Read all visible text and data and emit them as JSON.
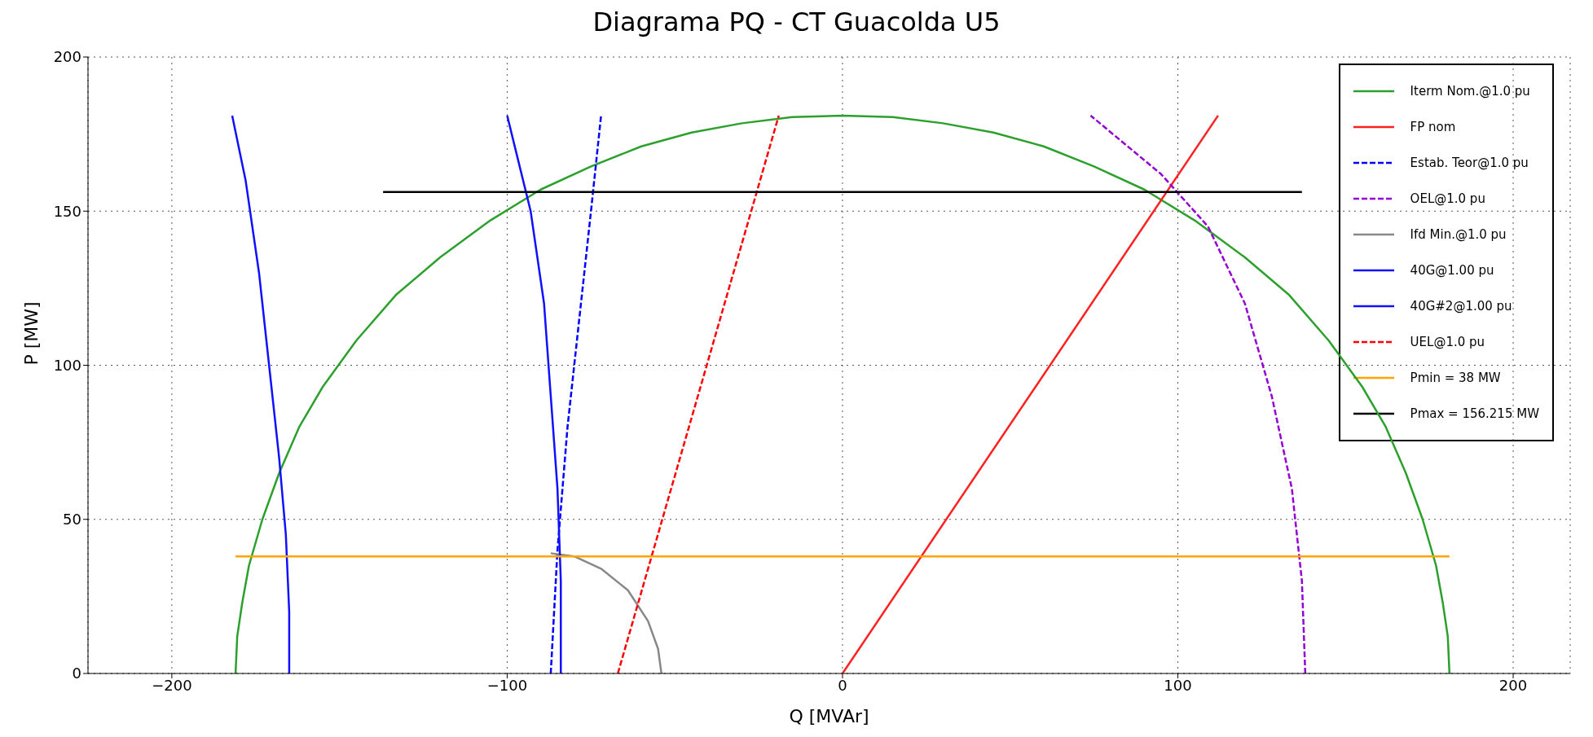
{
  "chart_data": {
    "type": "line",
    "title": "Diagrama PQ - CT Guacolda U5",
    "xlabel": "Q [MVAr]",
    "ylabel": "P [MW]",
    "xlim": [
      -225,
      217
    ],
    "ylim": [
      0,
      200
    ],
    "xticks": [
      -200,
      -100,
      0,
      100,
      200
    ],
    "yticks": [
      0,
      50,
      100,
      150,
      200
    ],
    "grid": true,
    "legend": "top right",
    "marker": "none",
    "series": [
      {
        "name": "Iterm Nom.@1.0 pu",
        "color": "#2ca02c",
        "line_style": "solid",
        "x": [
          -181,
          -180.5,
          -179,
          -177,
          -173,
          -168,
          -162,
          -155,
          -145,
          -133,
          -120,
          -105,
          -90,
          -75,
          -60,
          -45,
          -30,
          -15,
          0,
          15,
          30,
          45,
          60,
          75,
          90,
          105,
          120,
          133,
          145,
          155,
          162,
          168,
          173,
          177,
          179,
          180.5,
          181
        ],
        "values": [
          0,
          12,
          23,
          35,
          50,
          65,
          80,
          93,
          108,
          123,
          135,
          147,
          157,
          164.5,
          171,
          175.5,
          178.5,
          180.5,
          181,
          180.5,
          178.5,
          175.5,
          171,
          164.5,
          157,
          147,
          135,
          123,
          108,
          93,
          80,
          65,
          50,
          35,
          23,
          12,
          0
        ]
      },
      {
        "name": "FP nom",
        "color": "#ff2020",
        "line_style": "solid",
        "x": [
          0,
          112
        ],
        "values": [
          0,
          181
        ]
      },
      {
        "name": "Estab. Teor@1.0 pu",
        "color": "#0000ff",
        "line_style": "dashed",
        "x": [
          -87,
          -85,
          -82,
          -78,
          -75,
          -72
        ],
        "values": [
          0,
          40,
          80,
          120,
          150,
          181
        ]
      },
      {
        "name": "OEL@1.0 pu",
        "color": "#9400d3",
        "line_style": "dashed",
        "x": [
          138,
          137,
          134,
          128,
          120,
          109,
          95,
          74
        ],
        "values": [
          0,
          30,
          60,
          90,
          120,
          145,
          162,
          181
        ]
      },
      {
        "name": "Ifd Min.@1.0 pu",
        "color": "#888888",
        "line_style": "solid",
        "x": [
          -87,
          -80,
          -72,
          -64,
          -58,
          -55,
          -54
        ],
        "values": [
          39,
          38,
          34,
          27,
          17,
          8,
          0
        ]
      },
      {
        "name": "40G@1.00 pu",
        "color": "#1010ff",
        "line_style": "solid",
        "x": [
          -165,
          -165,
          -166,
          -168,
          -171,
          -174,
          -178,
          -182
        ],
        "values": [
          0,
          20,
          45,
          70,
          100,
          130,
          160,
          181
        ]
      },
      {
        "name": "40G#2@1.00 pu",
        "color": "#1010ff",
        "line_style": "solid",
        "x": [
          -84,
          -84,
          -85,
          -87,
          -89,
          -93,
          -100
        ],
        "values": [
          0,
          30,
          60,
          90,
          120,
          150,
          181
        ]
      },
      {
        "name": "UEL@1.0 pu",
        "color": "#ff0000",
        "line_style": "dashed",
        "x": [
          -67,
          -19
        ],
        "values": [
          0,
          181
        ]
      },
      {
        "name": "Pmin = 38 MW",
        "color": "#ffa500",
        "line_style": "solid",
        "x": [
          -181,
          181
        ],
        "values": [
          38,
          38
        ]
      },
      {
        "name": "Pmax = 156.215 MW",
        "color": "#000000",
        "line_style": "solid",
        "x": [
          -137,
          137
        ],
        "values": [
          156.215,
          156.215
        ]
      }
    ]
  }
}
